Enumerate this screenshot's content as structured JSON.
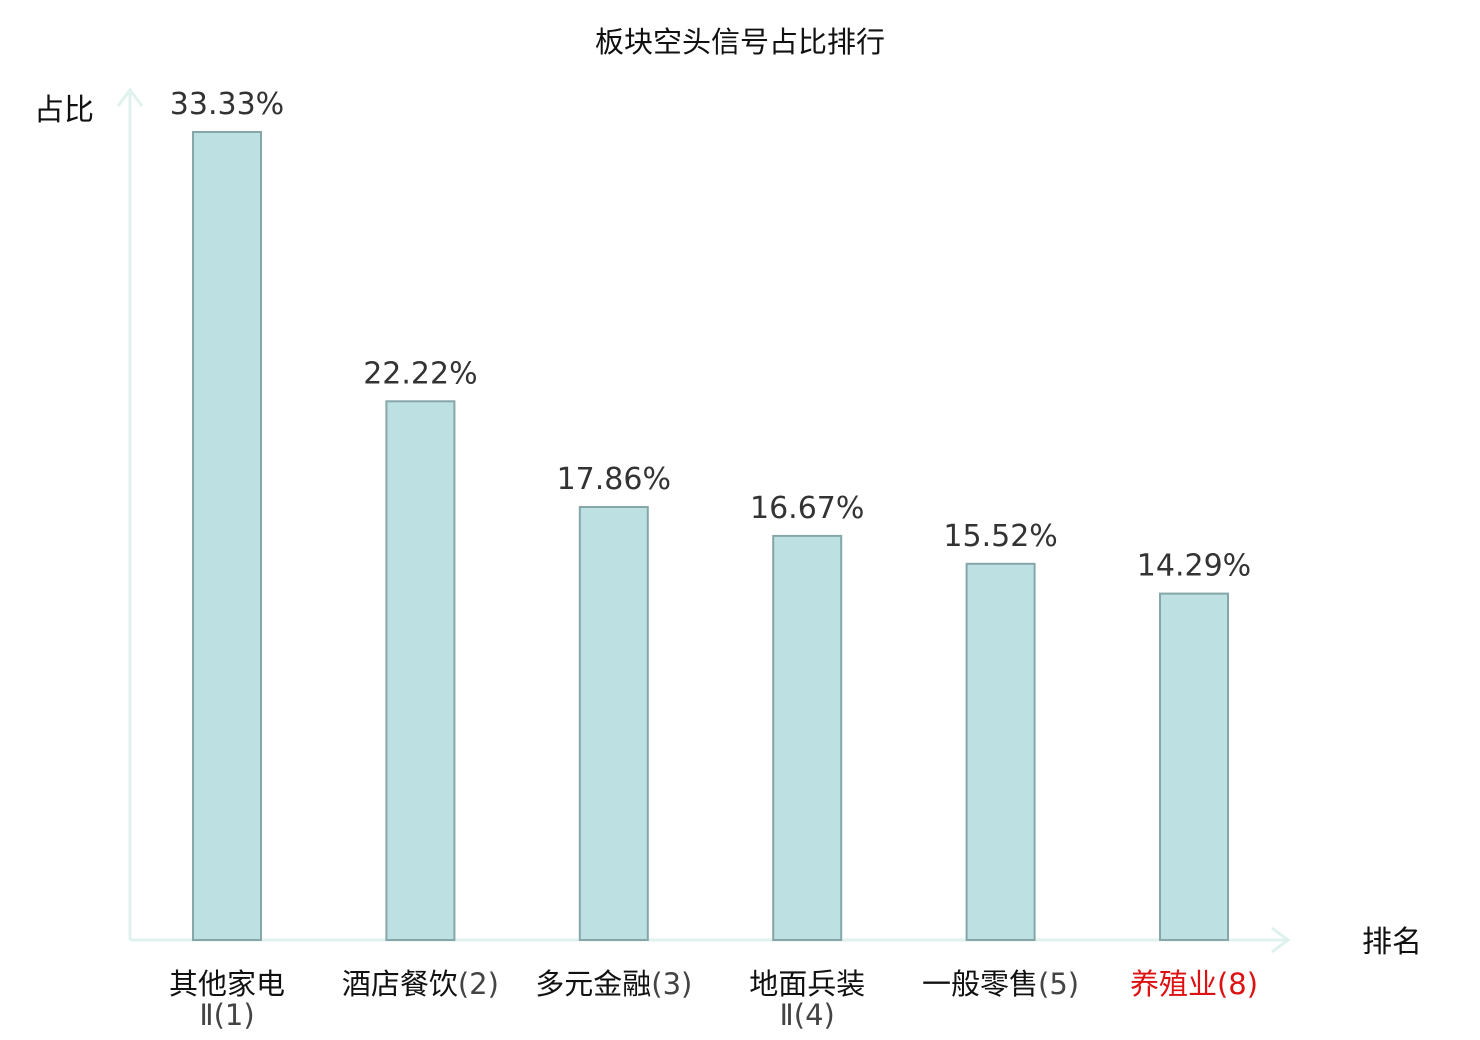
{
  "chart_data": {
    "type": "bar",
    "title": "板块空头信号占比排行",
    "xlabel": "排名",
    "ylabel": "占比",
    "ylim": [
      0,
      35
    ],
    "categories": [
      {
        "line1": "其他家电",
        "rank1": "",
        "line2": "Ⅱ(1)"
      },
      {
        "line1": "酒店餐饮",
        "rank1": "(2)",
        "line2": ""
      },
      {
        "line1": "多元金融",
        "rank1": "(3)",
        "line2": ""
      },
      {
        "line1": "地面兵装",
        "rank1": "",
        "line2": "Ⅱ(4)"
      },
      {
        "line1": "一般零售",
        "rank1": "(5)",
        "line2": ""
      },
      {
        "line1": "养殖业",
        "rank1": "(8)",
        "line2": ""
      }
    ],
    "values": [
      33.33,
      22.22,
      17.86,
      16.67,
      15.52,
      14.29
    ],
    "value_labels": [
      "33.33%",
      "22.22%",
      "17.86%",
      "16.67%",
      "15.52%",
      "14.29%"
    ],
    "highlight_index": 5,
    "grid": false,
    "colors": {
      "bar_fill": "#bde0e3",
      "bar_stroke": "#86a6a8",
      "axis": "#dff2ee",
      "highlight_text": "#dd1111",
      "text": "#111111",
      "value_text": "#333333"
    }
  }
}
